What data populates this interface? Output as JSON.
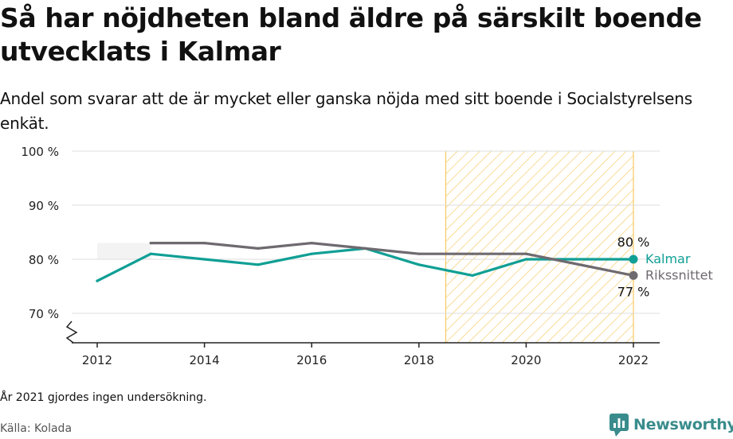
{
  "header": {
    "title": "Så har nöjdheten bland äldre på särskilt boende utvecklats i Kalmar",
    "subtitle": "Andel som svarar att de är mycket eller ganska nöjda med sitt boende i Socialstyrelsens enkät."
  },
  "footer": {
    "footnote": "År 2021 gjordes ingen undersökning.",
    "source": "Källa: Kolada",
    "brand": "Newsworthy"
  },
  "colors": {
    "kalmar": "#109f95",
    "riket": "#6e6a6f",
    "highlight": "#f6c962",
    "grid": "#dddddd",
    "axis": "#222222"
  },
  "chart_data": {
    "type": "line",
    "x_ticks": [
      2012,
      2014,
      2016,
      2018,
      2020,
      2022
    ],
    "y_ticks": [
      70,
      80,
      90,
      100
    ],
    "y_tick_labels": [
      "70 %",
      "80 %",
      "90 %",
      "100 %"
    ],
    "xlim": [
      2011.5,
      2022.5
    ],
    "ylim": [
      65,
      100
    ],
    "y_axis_break": true,
    "grid": "horizontal",
    "highlight_range": [
      2018.5,
      2022
    ],
    "series": [
      {
        "name": "Kalmar",
        "color_key": "kalmar",
        "x": [
          2012,
          2013,
          2014,
          2015,
          2016,
          2017,
          2018,
          2019,
          2020,
          2022
        ],
        "values": [
          76,
          81,
          80,
          79,
          81,
          82,
          79,
          77,
          80,
          80
        ],
        "end_label": "80 %"
      },
      {
        "name": "Rikssnittet",
        "color_key": "riket",
        "x": [
          2013,
          2014,
          2015,
          2016,
          2017,
          2018,
          2019,
          2020,
          2022
        ],
        "values": [
          83,
          83,
          82,
          83,
          82,
          81,
          81,
          81,
          77
        ],
        "end_label": "77 %"
      }
    ]
  }
}
